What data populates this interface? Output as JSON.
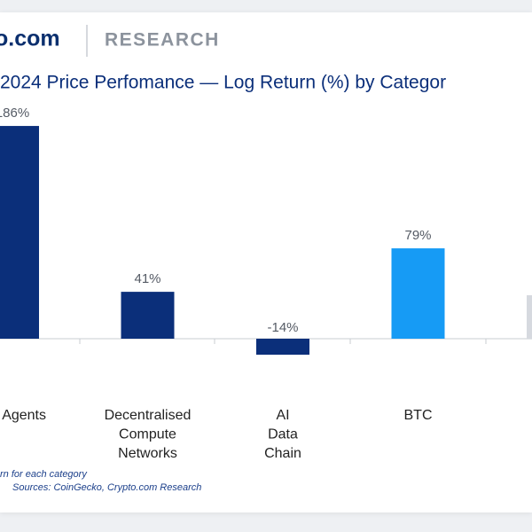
{
  "header": {
    "brand": "o.com",
    "section": "RESEARCH"
  },
  "chart_data": {
    "type": "bar",
    "title": "2024 Price Perfomance — Log Return (%) by Categor",
    "categories": [
      "Agents",
      "Decentralised Compute Networks",
      "AI Data Chain",
      "BTC",
      null
    ],
    "values": [
      186,
      41,
      -14,
      79,
      38
    ],
    "value_labels": [
      "186%",
      "41%",
      "-14%",
      "79%",
      null
    ],
    "colors": [
      "#0b2f7a",
      "#0b2f7a",
      "#0b2f7a",
      "#169bf5",
      "#d6d9df"
    ],
    "footnote": "rn for each category",
    "source": "Sources: CoinGecko, Crypto.com Research"
  }
}
